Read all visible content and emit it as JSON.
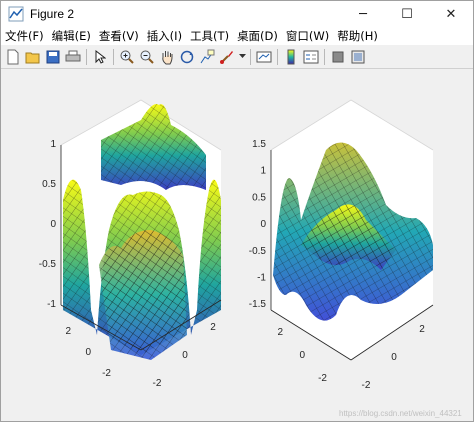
{
  "window": {
    "title": "Figure 2",
    "controls": {
      "minimize": "─",
      "maximize": "☐",
      "close": "✕"
    }
  },
  "menu": [
    {
      "label": "文件(F)"
    },
    {
      "label": "编辑(E)"
    },
    {
      "label": "查看(V)"
    },
    {
      "label": "插入(I)"
    },
    {
      "label": "工具(T)"
    },
    {
      "label": "桌面(D)"
    },
    {
      "label": "窗口(W)"
    },
    {
      "label": "帮助(H)"
    }
  ],
  "toolbar": {
    "buttons": [
      "new-figure-icon",
      "open-file-icon",
      "save-icon",
      "print-icon",
      "pointer-icon",
      "zoom-in-icon",
      "zoom-out-icon",
      "pan-icon",
      "rotate-3d-icon",
      "data-cursor-icon",
      "brush-icon",
      "link-plot-icon",
      "colorbar-icon",
      "legend-icon",
      "hide-plot-tools-icon",
      "show-plot-tools-icon"
    ]
  },
  "plots": {
    "left": {
      "z_ticks": [
        "1",
        "0.5",
        "0",
        "-0.5",
        "-1"
      ],
      "y_ticks": [
        "2",
        "0",
        "-2"
      ],
      "x_ticks": [
        "-2",
        "0",
        "2"
      ]
    },
    "right": {
      "z_ticks": [
        "1.5",
        "1",
        "0.5",
        "0",
        "-0.5",
        "-1",
        "-1.5"
      ],
      "y_ticks": [
        "2",
        "0",
        "-2"
      ],
      "x_ticks": [
        "-2",
        "0",
        "2"
      ]
    }
  },
  "watermark": "https://blog.csdn.net/weixin_44321"
}
